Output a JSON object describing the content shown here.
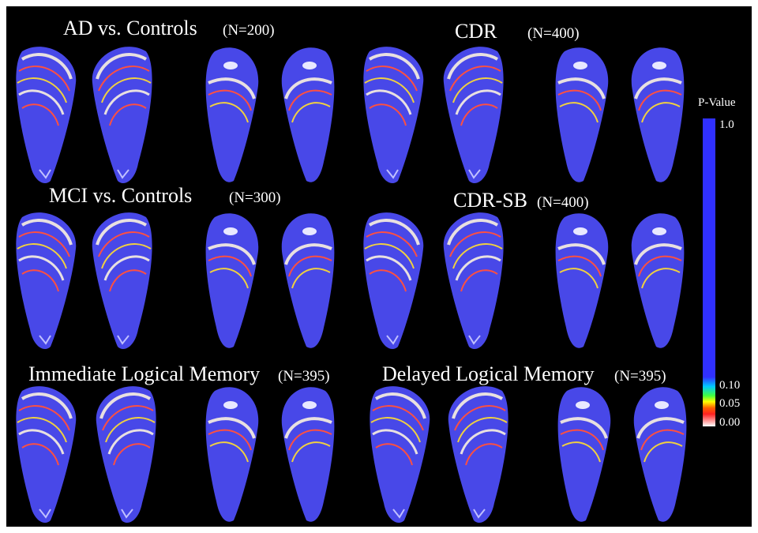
{
  "panels": [
    {
      "title": "AD vs. Controls",
      "n": "(N=200)"
    },
    {
      "title": "CDR",
      "n": "(N=400)"
    },
    {
      "title": "MCI vs. Controls",
      "n": "(N=300)"
    },
    {
      "title": "CDR-SB",
      "n": "(N=400)"
    },
    {
      "title": "Immediate Logical Memory",
      "n": "(N=395)"
    },
    {
      "title": "Delayed Logical Memory",
      "n": "(N=395)"
    }
  ],
  "colorbar": {
    "title": "P-Value",
    "labels": [
      "1.0",
      "0.10",
      "0.05",
      "0.00"
    ]
  }
}
